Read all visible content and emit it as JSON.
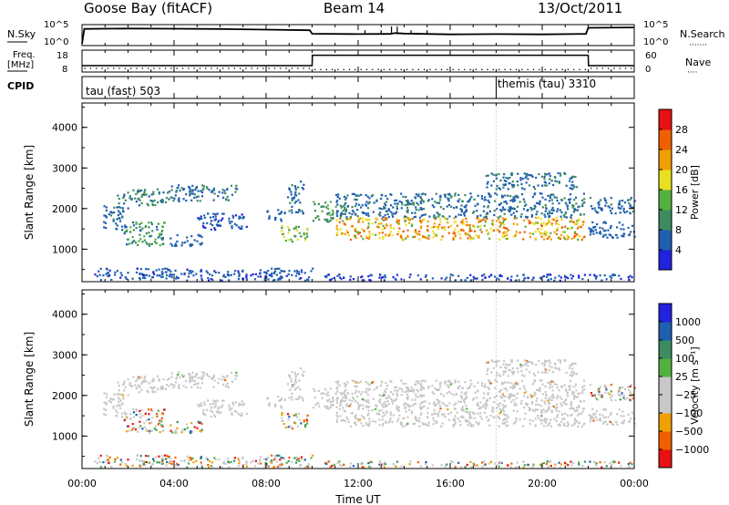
{
  "header": {
    "station": "Goose Bay (fitACF)",
    "beam": "Beam 14",
    "date": "13/Oct/2011"
  },
  "strip_labels": {
    "nsky": "N.Sky",
    "nsearch": "N.Search",
    "nsearch_dots": "·······",
    "freq_line1": "Freq.",
    "freq_line2": "[MHz]",
    "nave": "Nave",
    "nave_dots": "····",
    "cpid": "CPID",
    "nsky_ticks": [
      "10^5",
      "10^0"
    ],
    "nsearch_ticks": [
      "10^5",
      "10^0"
    ],
    "freq_ticks": [
      "18",
      "8"
    ],
    "nave_ticks": [
      "60",
      "0"
    ]
  },
  "cpid_segments": [
    {
      "label": "tau (fast) 503",
      "start_h": 0.0,
      "end_h": 18.0
    },
    {
      "label": "themis (tau) 3310",
      "start_h": 18.0,
      "end_h": 24.0
    }
  ],
  "colors": {
    "power_scale": [
      "#2222dd",
      "#1f5fb0",
      "#3c8c60",
      "#52b040",
      "#e8e020",
      "#f0a000",
      "#f06000",
      "#e81010"
    ],
    "velocity_scale": [
      "#e81010",
      "#f06000",
      "#f0a000",
      "#c8c8c8",
      "#c8c8c8",
      "#52b040",
      "#3c8c60",
      "#1f5fb0",
      "#2222dd"
    ],
    "ground_scatter": "#c8c8c8"
  },
  "chart_data": [
    {
      "type": "line",
      "name_axes": "N.Sky / N.Search",
      "x_range_hours": [
        0,
        24
      ],
      "log_scale": true,
      "ylim": [
        1,
        100000
      ],
      "series": [
        {
          "name": "N.Sky",
          "x": [
            0.0,
            0.1,
            2,
            4,
            6,
            8,
            9.9,
            10.0,
            12,
            13.4,
            13.6,
            14,
            16,
            18,
            20,
            21.9,
            22.0,
            24
          ],
          "y": [
            1,
            20000,
            25000,
            22000,
            18000,
            12000,
            8000,
            800,
            600,
            700,
            1200,
            900,
            500,
            600,
            500,
            700,
            40000,
            50000
          ]
        }
      ]
    },
    {
      "type": "line",
      "x_range_hours": [
        0,
        24
      ],
      "freq_ylim": [
        8,
        18
      ],
      "nave_ylim": [
        0,
        60
      ],
      "series": [
        {
          "name": "Freq.",
          "x": [
            0,
            10,
            10.01,
            22,
            22.01,
            24
          ],
          "y": [
            10.5,
            10.5,
            16.2,
            16.2,
            10.5,
            10.5
          ]
        },
        {
          "name": "Nave",
          "x": [
            0,
            10,
            10.01,
            22,
            22.01,
            24
          ],
          "y": [
            8,
            8,
            4,
            4,
            8,
            8
          ]
        }
      ]
    },
    {
      "type": "heatmap",
      "ylabel": "Slant Range [km]",
      "y_ticks": [
        "1000",
        "2000",
        "3000",
        "4000"
      ],
      "ylim": [
        200,
        4600
      ],
      "x_range_hours": [
        0,
        24
      ],
      "colorbar_label": "Power [dB]",
      "colorbar_ticks": [
        "4",
        "8",
        "12",
        "16",
        "20",
        "24",
        "28"
      ],
      "colorbar_range": [
        0,
        32
      ]
    },
    {
      "type": "heatmap",
      "ylabel": "Slant Range [km]",
      "y_ticks": [
        "1000",
        "2000",
        "3000",
        "4000"
      ],
      "ylim": [
        200,
        4600
      ],
      "xlabel": "Time UT",
      "x_ticks": [
        "00:00",
        "04:00",
        "08:00",
        "12:00",
        "16:00",
        "20:00",
        "00:00"
      ],
      "x_range_hours": [
        0,
        24
      ],
      "colorbar_label": "Velocity [m s⁻¹]",
      "colorbar_ticks": [
        "1000",
        "500",
        "100",
        "25",
        "−25",
        "−100",
        "−500",
        "−1000"
      ]
    }
  ],
  "scatter_regions": [
    {
      "t0": 1.5,
      "t1": 3.7,
      "r0": 2100,
      "r1": 2500,
      "pow": [
        6,
        12
      ],
      "vel": "gs"
    },
    {
      "t0": 3.7,
      "t1": 6.7,
      "r0": 2200,
      "r1": 2600,
      "pow": [
        4,
        10
      ],
      "vel": "gs"
    },
    {
      "t0": 0.9,
      "t1": 2.0,
      "r0": 1500,
      "r1": 2100,
      "pow": [
        4,
        9
      ],
      "vel": "gs"
    },
    {
      "t0": 1.8,
      "t1": 3.6,
      "r0": 1100,
      "r1": 1700,
      "pow": [
        6,
        16
      ],
      "vel": "mix"
    },
    {
      "t0": 3.8,
      "t1": 5.2,
      "r0": 1100,
      "r1": 1400,
      "pow": [
        4,
        8
      ],
      "vel": "mix"
    },
    {
      "t0": 5.0,
      "t1": 7.2,
      "r0": 1500,
      "r1": 1900,
      "pow": [
        3,
        7
      ],
      "vel": "gs"
    },
    {
      "t0": 8.0,
      "t1": 8.8,
      "r0": 1700,
      "r1": 2000,
      "pow": [
        4,
        8
      ],
      "vel": "gs"
    },
    {
      "t0": 8.6,
      "t1": 9.8,
      "r0": 1200,
      "r1": 1600,
      "pow": [
        8,
        20
      ],
      "vel": "mix"
    },
    {
      "t0": 8.9,
      "t1": 9.6,
      "r0": 1900,
      "r1": 2700,
      "pow": [
        4,
        9
      ],
      "vel": "gs"
    },
    {
      "t0": 10.0,
      "t1": 11.0,
      "r0": 1700,
      "r1": 2200,
      "pow": [
        8,
        14
      ],
      "vel": "gs"
    },
    {
      "t0": 11.0,
      "t1": 21.8,
      "r0": 1250,
      "r1": 1800,
      "pow": [
        14,
        28
      ],
      "vel": "gs"
    },
    {
      "t0": 11.0,
      "t1": 21.8,
      "r0": 1800,
      "r1": 2400,
      "pow": [
        4,
        10
      ],
      "vel": "gs"
    },
    {
      "t0": 17.5,
      "t1": 21.5,
      "r0": 2500,
      "r1": 2900,
      "pow": [
        4,
        10
      ],
      "vel": "gs"
    },
    {
      "t0": 22.0,
      "t1": 24.0,
      "r0": 1900,
      "r1": 2300,
      "pow": [
        4,
        9
      ],
      "vel": "mix"
    },
    {
      "t0": 22.0,
      "t1": 24.0,
      "r0": 1300,
      "r1": 1700,
      "pow": [
        4,
        8
      ],
      "vel": "gs"
    },
    {
      "t0": 0.5,
      "t1": 10.0,
      "r0": 250,
      "r1": 550,
      "pow": [
        3,
        8
      ],
      "vel": "mix"
    },
    {
      "t0": 10.5,
      "t1": 24.0,
      "r0": 250,
      "r1": 400,
      "pow": [
        3,
        6
      ],
      "vel": "mix"
    }
  ]
}
